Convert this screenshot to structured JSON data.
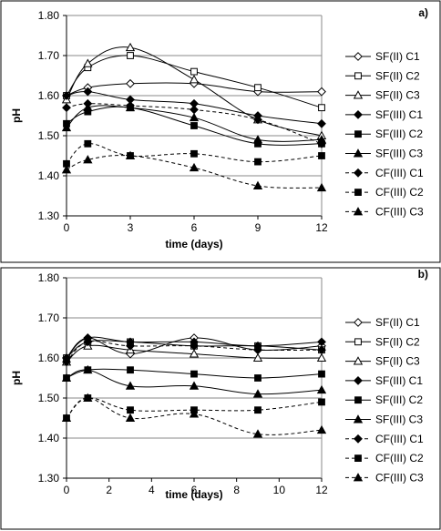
{
  "chart_data": [
    {
      "type": "line",
      "panel_label": "a)",
      "xlabel": "time (days)",
      "ylabel": "pH",
      "xlim": [
        0,
        12
      ],
      "ylim": [
        1.3,
        1.8
      ],
      "x_ticks": [
        "0",
        "3",
        "6",
        "9",
        "12"
      ],
      "y_ticks": [
        "1.30",
        "1.40",
        "1.50",
        "1.60",
        "1.70",
        "1.80"
      ],
      "grid": "horizontal",
      "legend_position": "right",
      "series": [
        {
          "name": "SF(II) C1",
          "marker": "diamond-open",
          "dash": "solid",
          "x": [
            0,
            1,
            3,
            6,
            9,
            12
          ],
          "values": [
            1.6,
            1.62,
            1.63,
            1.63,
            1.61,
            1.61
          ]
        },
        {
          "name": "SF(II) C2",
          "marker": "square-open",
          "dash": "solid",
          "x": [
            0,
            1,
            3,
            6,
            9,
            12
          ],
          "values": [
            1.6,
            1.67,
            1.7,
            1.66,
            1.62,
            1.57
          ]
        },
        {
          "name": "SF(II) C3",
          "marker": "triangle-open",
          "dash": "solid",
          "x": [
            0,
            1,
            3,
            6,
            9,
            12
          ],
          "values": [
            1.59,
            1.68,
            1.72,
            1.64,
            1.54,
            1.5
          ]
        },
        {
          "name": "SF(III) C1",
          "marker": "diamond",
          "dash": "solid",
          "x": [
            0,
            1,
            3,
            6,
            9,
            12
          ],
          "values": [
            1.6,
            1.61,
            1.59,
            1.58,
            1.55,
            1.53
          ]
        },
        {
          "name": "SF(III) C2",
          "marker": "square",
          "dash": "solid",
          "x": [
            0,
            1,
            3,
            6,
            9,
            12
          ],
          "values": [
            1.53,
            1.56,
            1.57,
            1.525,
            1.48,
            1.48
          ]
        },
        {
          "name": "SF(III) C3",
          "marker": "triangle",
          "dash": "solid",
          "x": [
            0,
            1,
            3,
            6,
            9,
            12
          ],
          "values": [
            1.52,
            1.57,
            1.57,
            1.545,
            1.49,
            1.49
          ]
        },
        {
          "name": "CF(III) C1",
          "marker": "diamond",
          "dash": "dashed",
          "x": [
            0,
            1,
            3,
            6,
            9,
            12
          ],
          "values": [
            1.57,
            1.58,
            1.575,
            1.565,
            1.54,
            1.48
          ]
        },
        {
          "name": "CF(III) C2",
          "marker": "square",
          "dash": "dashed",
          "x": [
            0,
            1,
            3,
            6,
            9,
            12
          ],
          "values": [
            1.43,
            1.48,
            1.45,
            1.455,
            1.435,
            1.45
          ]
        },
        {
          "name": "CF(III) C3",
          "marker": "triangle",
          "dash": "dashed",
          "x": [
            0,
            1,
            3,
            6,
            9,
            12
          ],
          "values": [
            1.415,
            1.44,
            1.45,
            1.42,
            1.375,
            1.37
          ]
        }
      ]
    },
    {
      "type": "line",
      "panel_label": "b)",
      "xlabel": "time (days)",
      "ylabel": "pH",
      "xlim": [
        0,
        12
      ],
      "ylim": [
        1.3,
        1.8
      ],
      "x_ticks": [
        "0",
        "2",
        "4",
        "6",
        "8",
        "10",
        "12"
      ],
      "y_ticks": [
        "1.30",
        "1.40",
        "1.50",
        "1.60",
        "1.70",
        "1.80"
      ],
      "grid": "horizontal",
      "legend_position": "right",
      "series": [
        {
          "name": "SF(II) C1",
          "marker": "diamond-open",
          "dash": "solid",
          "x": [
            0,
            1,
            3,
            6,
            9,
            12
          ],
          "values": [
            1.6,
            1.65,
            1.61,
            1.65,
            1.62,
            1.63
          ]
        },
        {
          "name": "SF(II) C2",
          "marker": "square-open",
          "dash": "solid",
          "x": [
            0,
            1,
            3,
            6,
            9,
            12
          ],
          "values": [
            1.6,
            1.64,
            1.64,
            1.63,
            1.63,
            1.62
          ]
        },
        {
          "name": "SF(II) C3",
          "marker": "triangle-open",
          "dash": "solid",
          "x": [
            0,
            1,
            3,
            6,
            9,
            12
          ],
          "values": [
            1.59,
            1.63,
            1.62,
            1.61,
            1.6,
            1.6
          ]
        },
        {
          "name": "SF(III) C1",
          "marker": "diamond",
          "dash": "solid",
          "x": [
            0,
            1,
            3,
            6,
            9,
            12
          ],
          "values": [
            1.6,
            1.65,
            1.64,
            1.64,
            1.63,
            1.64
          ]
        },
        {
          "name": "SF(III) C2",
          "marker": "square",
          "dash": "solid",
          "x": [
            0,
            1,
            3,
            6,
            9,
            12
          ],
          "values": [
            1.55,
            1.57,
            1.57,
            1.56,
            1.55,
            1.56
          ]
        },
        {
          "name": "SF(III) C3",
          "marker": "triangle",
          "dash": "solid",
          "x": [
            0,
            1,
            3,
            6,
            9,
            12
          ],
          "values": [
            1.55,
            1.57,
            1.53,
            1.53,
            1.51,
            1.52
          ]
        },
        {
          "name": "CF(III) C1",
          "marker": "diamond",
          "dash": "dashed",
          "x": [
            0,
            1,
            3,
            6,
            9,
            12
          ],
          "values": [
            1.59,
            1.64,
            1.63,
            1.63,
            1.62,
            1.62
          ]
        },
        {
          "name": "CF(III) C2",
          "marker": "square",
          "dash": "dashed",
          "x": [
            0,
            1,
            3,
            6,
            9,
            12
          ],
          "values": [
            1.45,
            1.5,
            1.47,
            1.47,
            1.47,
            1.49
          ]
        },
        {
          "name": "CF(III) C3",
          "marker": "triangle",
          "dash": "dashed",
          "x": [
            0,
            1,
            3,
            6,
            9,
            12
          ],
          "values": [
            1.45,
            1.5,
            1.45,
            1.46,
            1.41,
            1.42
          ]
        }
      ]
    }
  ]
}
